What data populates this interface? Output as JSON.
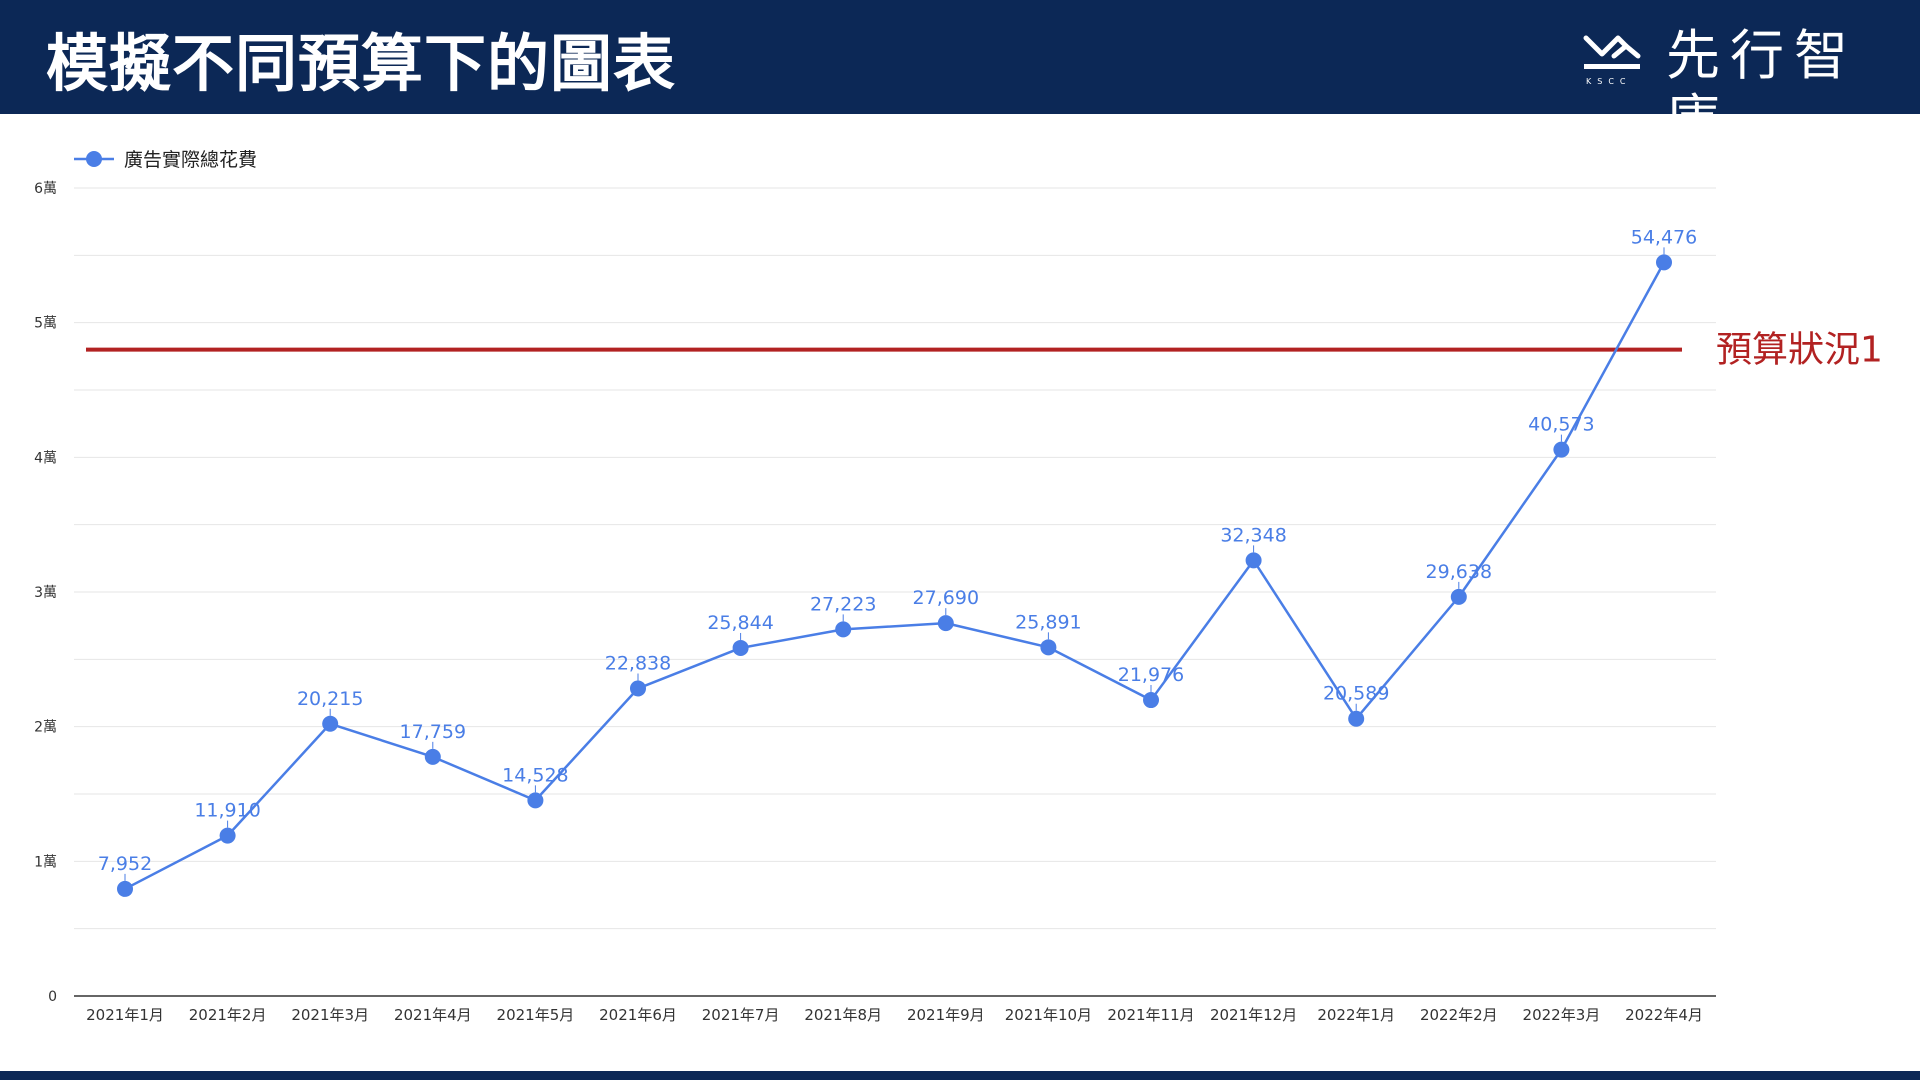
{
  "header": {
    "title": "模擬不同預算下的圖表",
    "logo_text": "先行智庫",
    "logo_subtext": "KSCC",
    "background_color": "#0c2856"
  },
  "chart_data": {
    "type": "line",
    "categories": [
      "2021年1月",
      "2021年2月",
      "2021年3月",
      "2021年4月",
      "2021年5月",
      "2021年6月",
      "2021年7月",
      "2021年8月",
      "2021年9月",
      "2021年10月",
      "2021年11月",
      "2021年12月",
      "2022年1月",
      "2022年2月",
      "2022年3月",
      "2022年4月"
    ],
    "series": [
      {
        "name": "廣告實際總花費",
        "color": "#4a7ee6",
        "values": [
          7952,
          11910,
          20215,
          17759,
          14528,
          22838,
          25844,
          27223,
          27690,
          25891,
          21976,
          32348,
          20589,
          29638,
          40573,
          54476
        ],
        "data_labels": [
          "7,952",
          "11,910",
          "20,215",
          "17,759",
          "14,528",
          "22,838",
          "25,844",
          "27,223",
          "27,690",
          "25,891",
          "21,976",
          "32,348",
          "20,589",
          "29,638",
          "40,573",
          "54,476"
        ]
      }
    ],
    "ylim": [
      0,
      60000
    ],
    "yticks": [
      0,
      10000,
      20000,
      30000,
      40000,
      50000,
      60000
    ],
    "ytick_labels": [
      "0",
      "1萬",
      "2萬",
      "3萬",
      "4萬",
      "5萬",
      "6萬"
    ],
    "grid": true,
    "legend_position": "top-left",
    "reference_line": {
      "label": "預算狀況1",
      "value": 48000,
      "color": "#b22222"
    }
  }
}
